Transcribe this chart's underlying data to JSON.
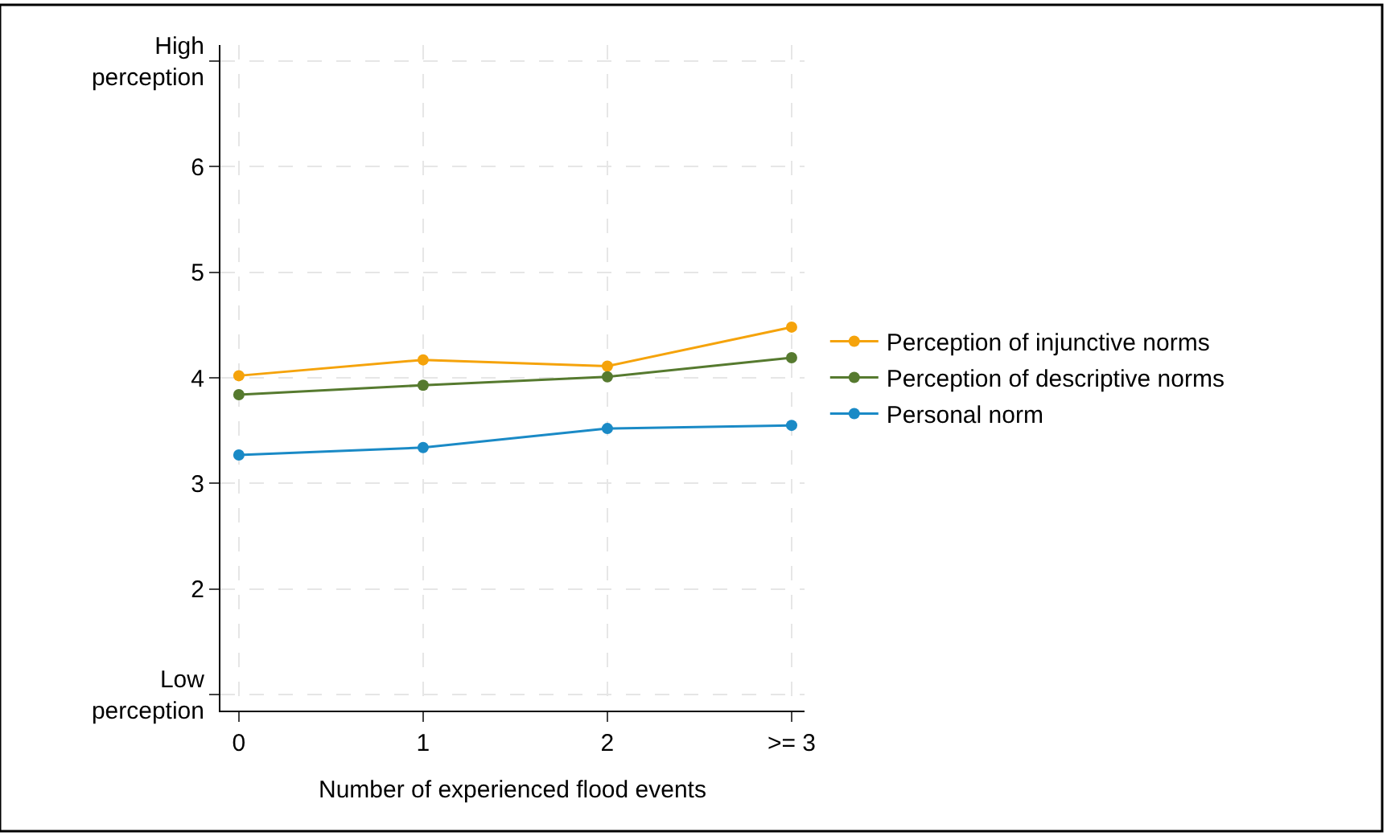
{
  "chart_data": {
    "type": "line",
    "xlabel": "Number of experienced flood events",
    "categories": [
      "0",
      "1",
      "2",
      ">= 3"
    ],
    "series": [
      {
        "name": "Perception of injunctive norms",
        "color": "#f5a30b",
        "values": [
          4.02,
          4.17,
          4.11,
          4.48
        ]
      },
      {
        "name": "Perception of descriptive norms",
        "color": "#567a2f",
        "values": [
          3.84,
          3.93,
          4.01,
          4.19
        ]
      },
      {
        "name": "Personal norm",
        "color": "#1a8ac6",
        "values": [
          3.27,
          3.34,
          3.52,
          3.55
        ]
      }
    ],
    "ylim": [
      0.85,
      7.15
    ],
    "yticks": [
      {
        "value": 1,
        "label": "Low\nperception"
      },
      2,
      3,
      4,
      5,
      6,
      {
        "value": 7,
        "label": "High\nperception"
      }
    ],
    "grid": true,
    "legend": "right",
    "marker": "circle",
    "line_style": "solid"
  }
}
